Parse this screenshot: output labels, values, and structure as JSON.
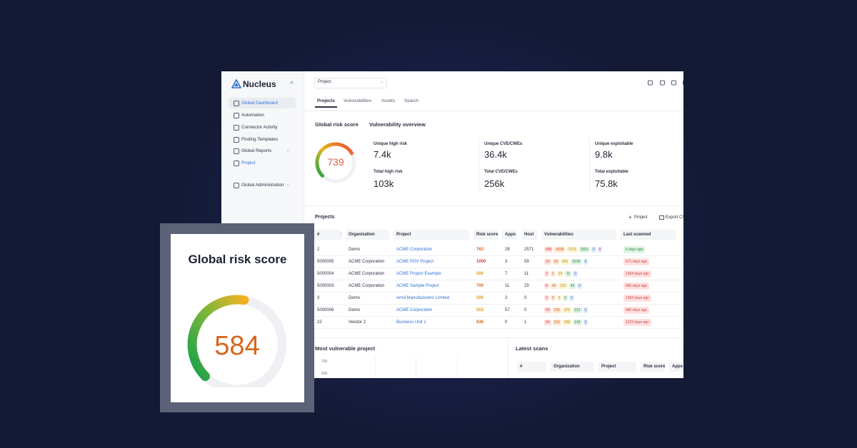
{
  "brand": "Nucleus",
  "sidebar": {
    "items": [
      "Global Dashboard",
      "Automation",
      "Connector Activity",
      "Finding Templates",
      "Global Reports",
      "Project",
      "Global Administration"
    ]
  },
  "project_select": "Project",
  "tabs": [
    "Projects",
    "Vulnerabilities",
    "Assets",
    "Search"
  ],
  "risk": {
    "title": "Global risk score",
    "score": 739
  },
  "overview": {
    "title": "Vulnerability overview",
    "stats": [
      {
        "label": "Unique high risk",
        "value": "7.4k"
      },
      {
        "label": "Total high risk",
        "value": "103k"
      },
      {
        "label": "Unique CVE/CWEs",
        "value": "36.4k"
      },
      {
        "label": "Total CVE/CWEs",
        "value": "256k"
      },
      {
        "label": "Unique exploitable",
        "value": "9.8k"
      },
      {
        "label": "Total exploitable",
        "value": "75.8k"
      }
    ]
  },
  "projects": {
    "title": "Projects",
    "actions": [
      "Project",
      "Export CSV"
    ],
    "columns": [
      "#",
      "Organization",
      "Project",
      "Risk score",
      "Apps",
      "Host",
      "Vulnerabilities",
      "Last scanned"
    ],
    "rows": [
      {
        "id": 2,
        "organization": "Demo",
        "project": "ACME Corporation",
        "risk_score": 763,
        "apps": 28,
        "host": 2571,
        "vulnerabilities": [
          495,
          4838,
          7372,
          1501,
          0,
          0
        ],
        "last_scanned": "6 days ago"
      },
      {
        "id": 5000005,
        "organization": "ACME Corporation",
        "project": "ACME POV Project",
        "risk_score": 1000,
        "apps": 3,
        "host": 59,
        "vulnerabilities": [
          10,
          56,
          431,
          3105,
          6
        ],
        "last_scanned": "671 days ago"
      },
      {
        "id": 5000004,
        "organization": "ACME Corporation",
        "project": "ACME Project Example",
        "risk_score": 500,
        "apps": 7,
        "host": 11,
        "vulnerabilities": [
          3,
          2,
          14,
          11,
          0
        ],
        "last_scanned": "1364 days ago"
      },
      {
        "id": 5000003,
        "organization": "ACME Corporation",
        "project": "ACME Sample Project",
        "risk_score": 700,
        "apps": 11,
        "host": 29,
        "vulnerabilities": [
          8,
          40,
          101,
          43,
          0
        ],
        "last_scanned": "966 days ago"
      },
      {
        "id": 3,
        "organization": "Demo",
        "project": "Anvil Manufacturers Limited",
        "risk_score": 500,
        "apps": 2,
        "host": 0,
        "vulnerabilities": [
          0,
          0,
          2,
          0,
          0
        ],
        "last_scanned": "1363 days ago"
      },
      {
        "id": 5000006,
        "organization": "Demo",
        "project": "ACME Corporation",
        "risk_score": 503,
        "apps": 57,
        "host": 0,
        "vulnerabilities": [
          50,
          236,
          372,
          212,
          0
        ],
        "last_scanned": "965 days ago"
      },
      {
        "id": 22,
        "organization": "Vendor 2",
        "project": "Business Unit 1",
        "risk_score": 636,
        "apps": 0,
        "host": 1,
        "vulnerabilities": [
          64,
          216,
          296,
          142,
          6
        ],
        "last_scanned": "1223 days ago"
      }
    ]
  },
  "most_vulnerable": {
    "title": "Most vulnerable project",
    "yticks": [
      700,
      600
    ]
  },
  "latest_scans": {
    "title": "Latest scans",
    "columns": [
      "#",
      "Organization",
      "Project",
      "Risk score",
      "Apps"
    ]
  },
  "card": {
    "title": "Global risk score",
    "score": 584
  }
}
